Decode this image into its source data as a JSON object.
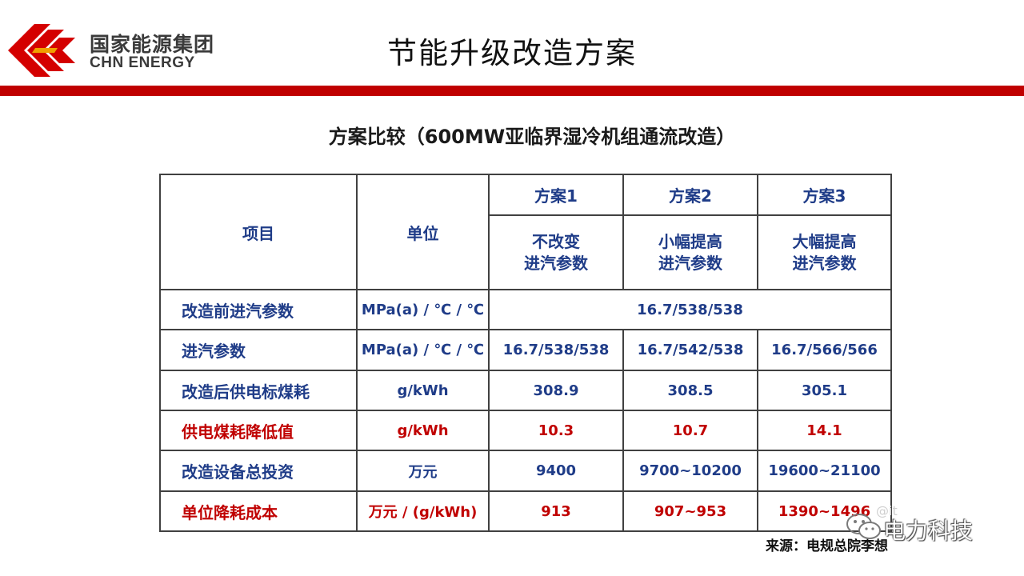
{
  "header": {
    "logo_cn": "国家能源集团",
    "logo_en": "CHN ENERGY",
    "title": "节能升级改造方案"
  },
  "table": {
    "title": "方案比较（600MW亚临界湿冷机组通流改造）",
    "headers": {
      "item": "项目",
      "unit": "单位",
      "plans": [
        {
          "name": "方案1",
          "desc_line1": "不改变",
          "desc_line2": "进汽参数"
        },
        {
          "name": "方案2",
          "desc_line1": "小幅提高",
          "desc_line2": "进汽参数"
        },
        {
          "name": "方案3",
          "desc_line1": "大幅提高",
          "desc_line2": "进汽参数"
        }
      ]
    },
    "rows": [
      {
        "label": "改造前进汽参数",
        "unit": "MPa(a) / ℃ / ℃",
        "merged": "16.7/538/538"
      },
      {
        "label": "进汽参数",
        "unit": "MPa(a) / ℃ / ℃",
        "values": [
          "16.7/538/538",
          "16.7/542/538",
          "16.7/566/566"
        ]
      },
      {
        "label": "改造后供电标煤耗",
        "unit": "g/kWh",
        "values": [
          "308.9",
          "308.5",
          "305.1"
        ]
      },
      {
        "label": "供电煤耗降低值",
        "unit": "g/kWh",
        "values": [
          "10.3",
          "10.7",
          "14.1"
        ]
      },
      {
        "label": "改造设备总投资",
        "unit": "万元",
        "values": [
          "9400",
          "9700~10200",
          "19600~21100"
        ]
      },
      {
        "label": "单位降耗成本",
        "unit": "万元 / (g/kWh)",
        "values": [
          "913",
          "907~953",
          "1390~1496"
        ]
      }
    ]
  },
  "footer": {
    "source": "来源：电规总院李想",
    "watermark": "电力科技",
    "watermark_small": "@it"
  },
  "colors": {
    "accent_red": "#c00000",
    "table_text_blue": "#1f3c88"
  }
}
